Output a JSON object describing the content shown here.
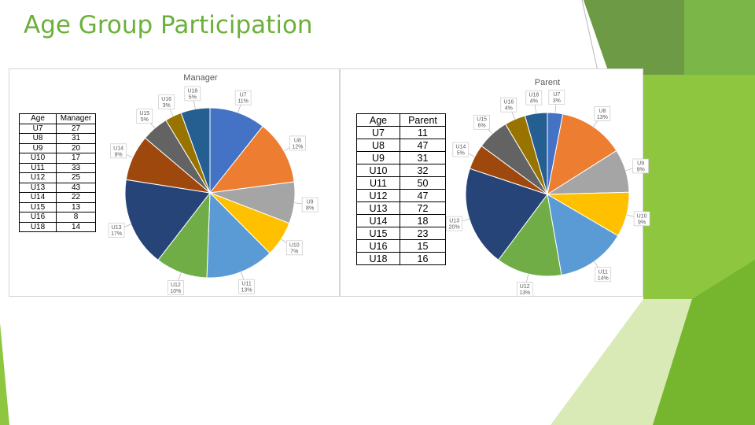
{
  "slide": {
    "title": "Age Group Participation"
  },
  "theme": {
    "accent": "#6bb03a"
  },
  "chart_data": [
    {
      "type": "pie",
      "title": "Manager",
      "table_headers": [
        "Age",
        "Manager"
      ],
      "categories": [
        "U7",
        "U8",
        "U9",
        "U10",
        "U11",
        "U12",
        "U13",
        "U14",
        "U15",
        "U16",
        "U18"
      ],
      "values": [
        27,
        31,
        20,
        17,
        33,
        25,
        43,
        22,
        13,
        8,
        14
      ],
      "labels": [
        "11%",
        "12%",
        "8%",
        "7%",
        "13%",
        "10%",
        "17%",
        "9%",
        "5%",
        "3%",
        "5%"
      ],
      "colors": [
        "#4472c4",
        "#ed7d31",
        "#a5a5a5",
        "#ffc000",
        "#5b9bd5",
        "#70ad47",
        "#264478",
        "#9e480e",
        "#636363",
        "#997300",
        "#255e91"
      ]
    },
    {
      "type": "pie",
      "title": "Parent",
      "table_headers": [
        "Age",
        "Parent"
      ],
      "categories": [
        "U7",
        "U8",
        "U9",
        "U10",
        "U11",
        "U12",
        "U13",
        "U14",
        "U15",
        "U16",
        "U18"
      ],
      "values": [
        11,
        47,
        31,
        32,
        50,
        47,
        72,
        18,
        23,
        15,
        16
      ],
      "labels": [
        "3%",
        "13%",
        "9%",
        "9%",
        "14%",
        "13%",
        "20%",
        "5%",
        "6%",
        "4%",
        "4%"
      ],
      "colors": [
        "#4472c4",
        "#ed7d31",
        "#a5a5a5",
        "#ffc000",
        "#5b9bd5",
        "#70ad47",
        "#264478",
        "#9e480e",
        "#636363",
        "#997300",
        "#255e91"
      ]
    }
  ]
}
